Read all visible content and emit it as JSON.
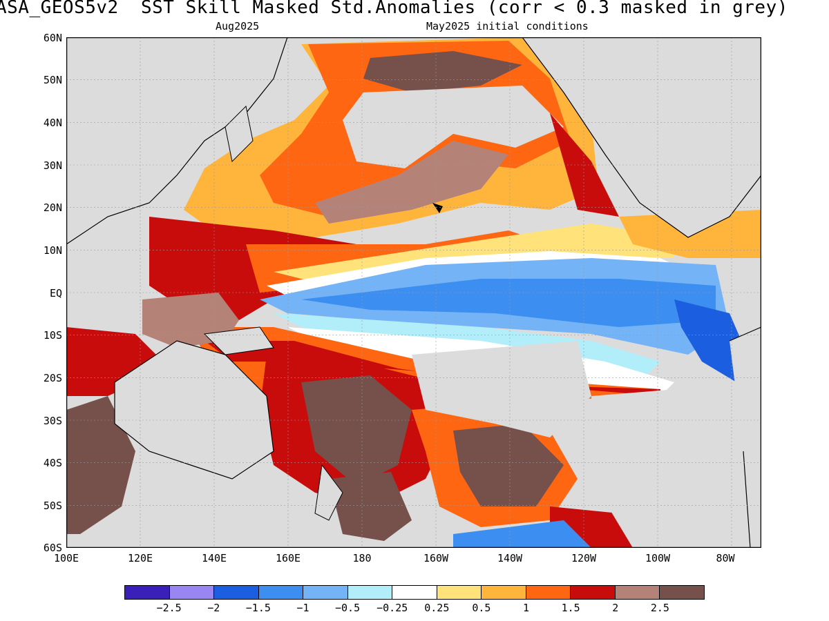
{
  "title": "ASA_GEOS5v2  SST Skill Masked Std.Anomalies (corr < 0.3 masked in grey)",
  "subtitle_left": "Aug2025",
  "subtitle_right": "May2025 initial conditions",
  "yticks": [
    "60N",
    "50N",
    "40N",
    "30N",
    "20N",
    "10N",
    "EQ",
    "10S",
    "20S",
    "30S",
    "40S",
    "50S",
    "60S"
  ],
  "xticks": [
    "100E",
    "120E",
    "140E",
    "160E",
    "180",
    "160W",
    "140W",
    "120W",
    "100W",
    "80W"
  ],
  "colorbar": {
    "colors": [
      "#3a20b8",
      "#9a86f2",
      "#1c5ee0",
      "#3c8ef0",
      "#74b4f6",
      "#b2eefa",
      "#ffffff",
      "#ffe27a",
      "#ffb43c",
      "#ff6612",
      "#c80c0c",
      "#b48276",
      "#76504a"
    ],
    "labels": [
      "−2.5",
      "−2",
      "−1.5",
      "−1",
      "−0.5",
      "−0.25",
      "0.25",
      "0.5",
      "1",
      "1.5",
      "2",
      "2.5"
    ]
  },
  "palette": {
    "mask_grey": "#dcdcdc",
    "land_outline": "#000000",
    "frame": "#000000"
  }
}
